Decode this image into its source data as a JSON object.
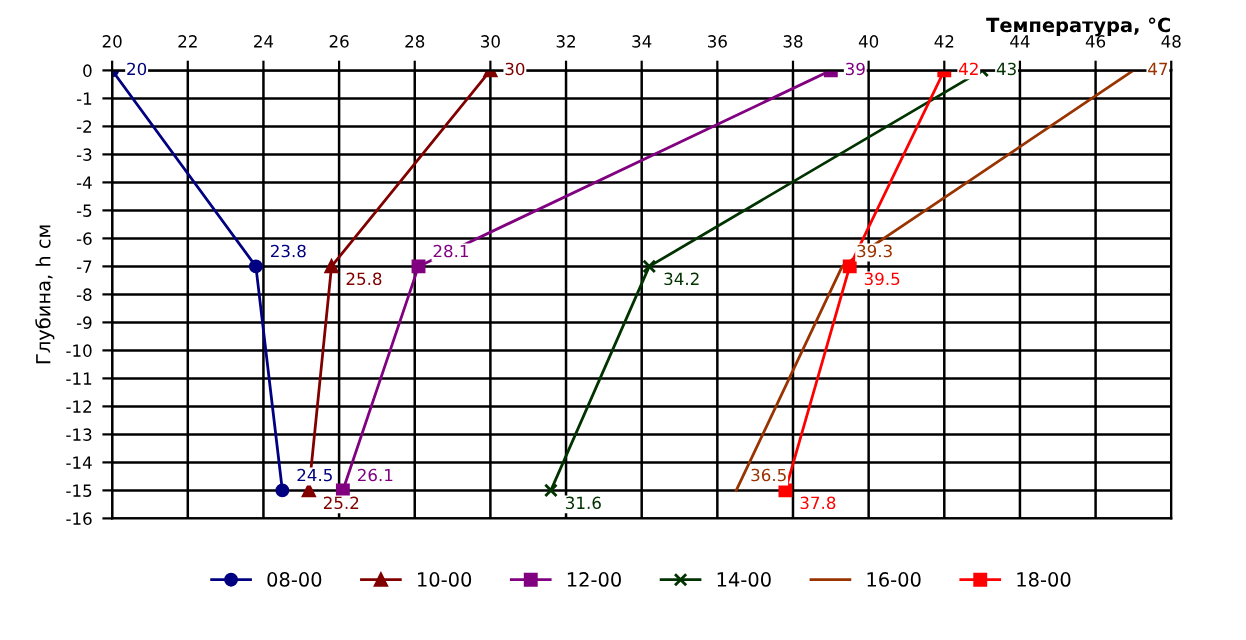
{
  "chart_data": {
    "type": "line",
    "orientation": "horizontal",
    "xlabel": "Температура, °C",
    "ylabel": "Глубина, h см",
    "xlim": [
      20,
      48
    ],
    "xticks": [
      20,
      22,
      24,
      26,
      28,
      30,
      32,
      34,
      36,
      38,
      40,
      42,
      44,
      46,
      48
    ],
    "ylim": [
      -16,
      0
    ],
    "yticks": [
      0,
      -1,
      -2,
      -3,
      -4,
      -5,
      -6,
      -7,
      -8,
      -9,
      -10,
      -11,
      -12,
      -13,
      -14,
      -15,
      -16
    ],
    "grid": true,
    "legend": "bottom",
    "data_labels": true,
    "series": [
      {
        "name": "08-00",
        "color": "#000080",
        "marker": "circle",
        "x": [
          0,
          -7,
          -15
        ],
        "values": [
          20,
          23.8,
          24.5
        ]
      },
      {
        "name": "10-00",
        "color": "#800000",
        "marker": "triangle",
        "x": [
          0,
          -7,
          -15
        ],
        "values": [
          30,
          25.8,
          25.2
        ]
      },
      {
        "name": "12-00",
        "color": "#800080",
        "marker": "square",
        "x": [
          0,
          -7,
          -15
        ],
        "values": [
          39,
          28.1,
          26.1
        ]
      },
      {
        "name": "14-00",
        "color": "#003300",
        "marker": "cross",
        "x": [
          0,
          -7,
          -15
        ],
        "values": [
          43,
          34.2,
          31.6
        ]
      },
      {
        "name": "16-00",
        "color": "#993300",
        "marker": "none",
        "x": [
          0,
          -7,
          -15
        ],
        "values": [
          47,
          39.3,
          36.5
        ]
      },
      {
        "name": "18-00",
        "color": "#ff0000",
        "marker": "square",
        "x": [
          0,
          -7,
          -15
        ],
        "values": [
          42,
          39.5,
          37.8
        ]
      }
    ]
  }
}
